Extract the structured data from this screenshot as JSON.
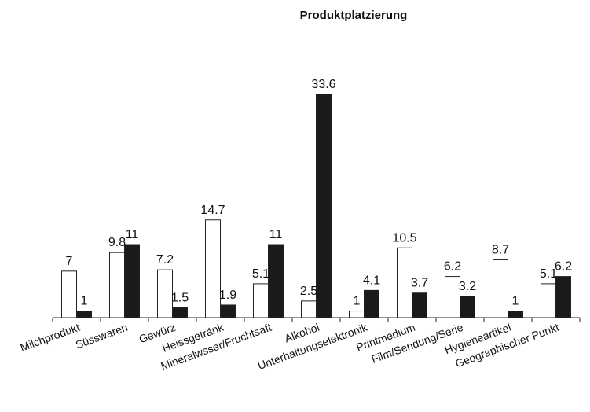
{
  "chart_data": {
    "type": "bar",
    "title": "Produktplatzierung",
    "xlabel": "",
    "ylabel": "",
    "ylim": [
      0,
      35
    ],
    "grid": false,
    "legend": "none",
    "categories": [
      "Milchprodukt",
      "Süsswaren",
      "Gewürz",
      "Heissgetränk",
      "Mineralwsser/Fruchtsaft",
      "Alkohol",
      "Unterhaltungselektronik",
      "Printmedium",
      "Film/Sendung/Serie",
      "Hygieneartikel",
      "Geographischer Punkt"
    ],
    "series": [
      {
        "values": [
          7,
          9.8,
          7.2,
          14.7,
          5.1,
          2.5,
          1,
          10.5,
          6.2,
          8.7,
          5.1
        ],
        "color": "#ffffff"
      },
      {
        "values": [
          1,
          11,
          1.5,
          1.9,
          11,
          33.6,
          4.1,
          3.7,
          3.2,
          1,
          6.2
        ],
        "color": "#1a1a1a"
      }
    ]
  }
}
